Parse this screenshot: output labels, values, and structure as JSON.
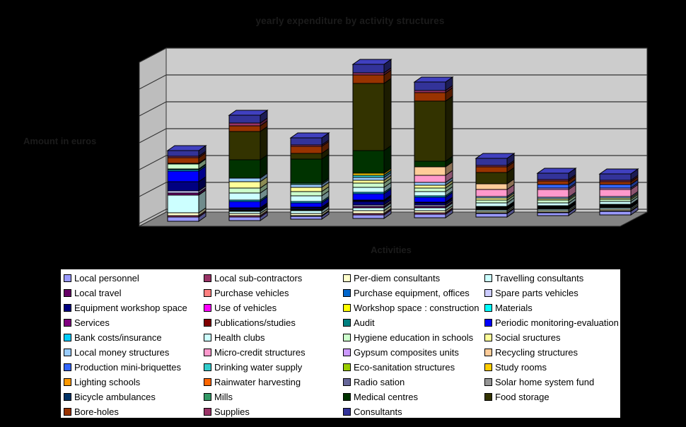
{
  "page": {
    "background": "#000000"
  },
  "chart_data": {
    "type": "bar",
    "variant": "3d-stacked-column",
    "title": "yearly expenditure by activity structures",
    "xlabel": "Activities",
    "ylabel": "Amount in euros",
    "legend_position": "bottom",
    "grid": true,
    "categories": [
      "",
      "",
      "",
      "",
      "",
      "",
      "",
      ""
    ],
    "categories_note": "8 stacked columns; value-axis and category-axis tick labels are rendered black-on-black and are not legible in the screenshot",
    "values_unit": "relative segment height (screen px); numeric axis scale not legible",
    "colors": {
      "back_wall": "#CCCCCC",
      "side_wall": "#BDBDBD",
      "floor": "#848484",
      "gridline": "#333333",
      "outline": "#000000",
      "legend_bg": "#FFFFFF",
      "faint_text": "#1B1B1B"
    },
    "series": [
      {
        "name": "Local personnel",
        "color": "#9999FF",
        "values": [
          6,
          5,
          4,
          5,
          5,
          5,
          4,
          5
        ]
      },
      {
        "name": "Local sub-contractors",
        "color": "#993366",
        "values": [
          2,
          2,
          1,
          2,
          2,
          1,
          1,
          1
        ]
      },
      {
        "name": "Per-diem consultants",
        "color": "#FFFFCC",
        "values": [
          4,
          3,
          3,
          4,
          3,
          2,
          2,
          2
        ]
      },
      {
        "name": "Travelling consultants",
        "color": "#CCFFFF",
        "values": [
          25,
          3,
          4,
          4,
          4,
          2,
          2,
          2
        ]
      },
      {
        "name": "Local travel",
        "color": "#660066",
        "values": [
          3,
          1,
          1,
          2,
          2,
          1,
          1,
          1
        ]
      },
      {
        "name": "Purchase vehicles",
        "color": "#FF8080",
        "values": [
          0,
          0,
          0,
          0,
          0,
          0,
          0,
          0
        ]
      },
      {
        "name": "Purchase equipment, offices",
        "color": "#0066CC",
        "values": [
          0,
          0,
          0,
          0,
          0,
          0,
          0,
          0
        ]
      },
      {
        "name": "Spare parts vehicles",
        "color": "#CCCCFF",
        "values": [
          3,
          1,
          1,
          2,
          2,
          1,
          1,
          1
        ]
      },
      {
        "name": "Equipment workshop space",
        "color": "#000080",
        "values": [
          13,
          2,
          2,
          5,
          3,
          1,
          1,
          1
        ]
      },
      {
        "name": "Use of vehicles",
        "color": "#FF00FF",
        "values": [
          0,
          1,
          0,
          1,
          0,
          0,
          0,
          0
        ]
      },
      {
        "name": "Workshop space : construction",
        "color": "#FFFF00",
        "values": [
          0,
          0,
          0,
          0,
          0,
          0,
          0,
          0
        ]
      },
      {
        "name": "Materials",
        "color": "#00FFFF",
        "values": [
          0,
          0,
          0,
          0,
          0,
          0,
          0,
          0
        ]
      },
      {
        "name": "Services",
        "color": "#800080",
        "values": [
          0,
          0,
          0,
          0,
          0,
          0,
          0,
          0
        ]
      },
      {
        "name": "Publications/studies",
        "color": "#800000",
        "values": [
          0,
          0,
          0,
          0,
          0,
          0,
          0,
          0
        ]
      },
      {
        "name": "Audit",
        "color": "#008080",
        "values": [
          0,
          0,
          1,
          1,
          1,
          1,
          1,
          1
        ]
      },
      {
        "name": "Periodic monitoring-evaluation",
        "color": "#0000FF",
        "values": [
          15,
          9,
          6,
          9,
          7,
          0,
          0,
          0
        ]
      },
      {
        "name": "Bank costs/insurance",
        "color": "#00CCFF",
        "values": [
          2,
          2,
          2,
          2,
          2,
          1,
          1,
          1
        ]
      },
      {
        "name": "Health clubs",
        "color": "#CCFFFF",
        "values": [
          1,
          10,
          8,
          7,
          6,
          5,
          4,
          4
        ]
      },
      {
        "name": "Hygiene education in schools",
        "color": "#CCFFCC",
        "values": [
          7,
          7,
          6,
          6,
          5,
          4,
          4,
          3
        ]
      },
      {
        "name": "Social sructures",
        "color": "#FFFF99",
        "values": [
          1,
          9,
          6,
          4,
          4,
          3,
          2,
          2
        ]
      },
      {
        "name": "Local money structures",
        "color": "#99CCFF",
        "values": [
          0,
          5,
          4,
          4,
          4,
          2,
          2,
          2
        ]
      },
      {
        "name": "Micro-credit structures",
        "color": "#FF99CC",
        "values": [
          0,
          0,
          0,
          0,
          10,
          10,
          11,
          10
        ]
      },
      {
        "name": "Gypsum composites units",
        "color": "#CC99FF",
        "values": [
          0,
          0,
          0,
          0,
          0,
          0,
          2,
          2
        ]
      },
      {
        "name": "Recycling structures",
        "color": "#FFCC99",
        "values": [
          0,
          0,
          0,
          0,
          12,
          8,
          0,
          0
        ]
      },
      {
        "name": "Production mini-briquettes",
        "color": "#3366FF",
        "values": [
          0,
          0,
          0,
          0,
          0,
          0,
          5,
          5
        ]
      },
      {
        "name": "Drinking water supply",
        "color": "#33CCCC",
        "values": [
          0,
          0,
          0,
          3,
          0,
          0,
          0,
          0
        ]
      },
      {
        "name": "Eco-sanitation structures",
        "color": "#99CC00",
        "values": [
          0,
          0,
          0,
          0,
          0,
          0,
          0,
          0
        ]
      },
      {
        "name": "Study rooms",
        "color": "#FFCC00",
        "values": [
          0,
          0,
          0,
          3,
          0,
          0,
          0,
          0
        ]
      },
      {
        "name": "Lighting schools",
        "color": "#FF9900",
        "values": [
          0,
          0,
          0,
          0,
          0,
          0,
          0,
          0
        ]
      },
      {
        "name": "Rainwater harvesting",
        "color": "#FF6600",
        "values": [
          0,
          0,
          0,
          0,
          0,
          0,
          0,
          0
        ]
      },
      {
        "name": "Radio sation",
        "color": "#666699",
        "values": [
          0,
          0,
          0,
          0,
          0,
          0,
          0,
          0
        ]
      },
      {
        "name": "Solar home system fund",
        "color": "#969696",
        "values": [
          0,
          0,
          0,
          0,
          0,
          0,
          0,
          0
        ]
      },
      {
        "name": "Bicycle ambulances",
        "color": "#003366",
        "values": [
          0,
          0,
          0,
          0,
          0,
          0,
          0,
          0
        ]
      },
      {
        "name": "Mills",
        "color": "#339966",
        "values": [
          0,
          0,
          2,
          0,
          0,
          0,
          0,
          0
        ]
      },
      {
        "name": "Medical centres",
        "color": "#003300",
        "values": [
          0,
          26,
          34,
          32,
          8,
          0,
          0,
          0
        ]
      },
      {
        "name": "Food storage",
        "color": "#333300",
        "values": [
          0,
          40,
          8,
          95,
          85,
          16,
          0,
          0
        ]
      },
      {
        "name": "Bore-holes",
        "color": "#993300",
        "values": [
          8,
          8,
          10,
          12,
          12,
          8,
          5,
          4
        ]
      },
      {
        "name": "Supplies",
        "color": "#993366",
        "values": [
          2,
          4,
          2,
          3,
          3,
          2,
          2,
          2
        ]
      },
      {
        "name": "Consultants",
        "color": "#333399",
        "values": [
          8,
          11,
          10,
          12,
          12,
          10,
          9,
          9
        ]
      }
    ]
  }
}
